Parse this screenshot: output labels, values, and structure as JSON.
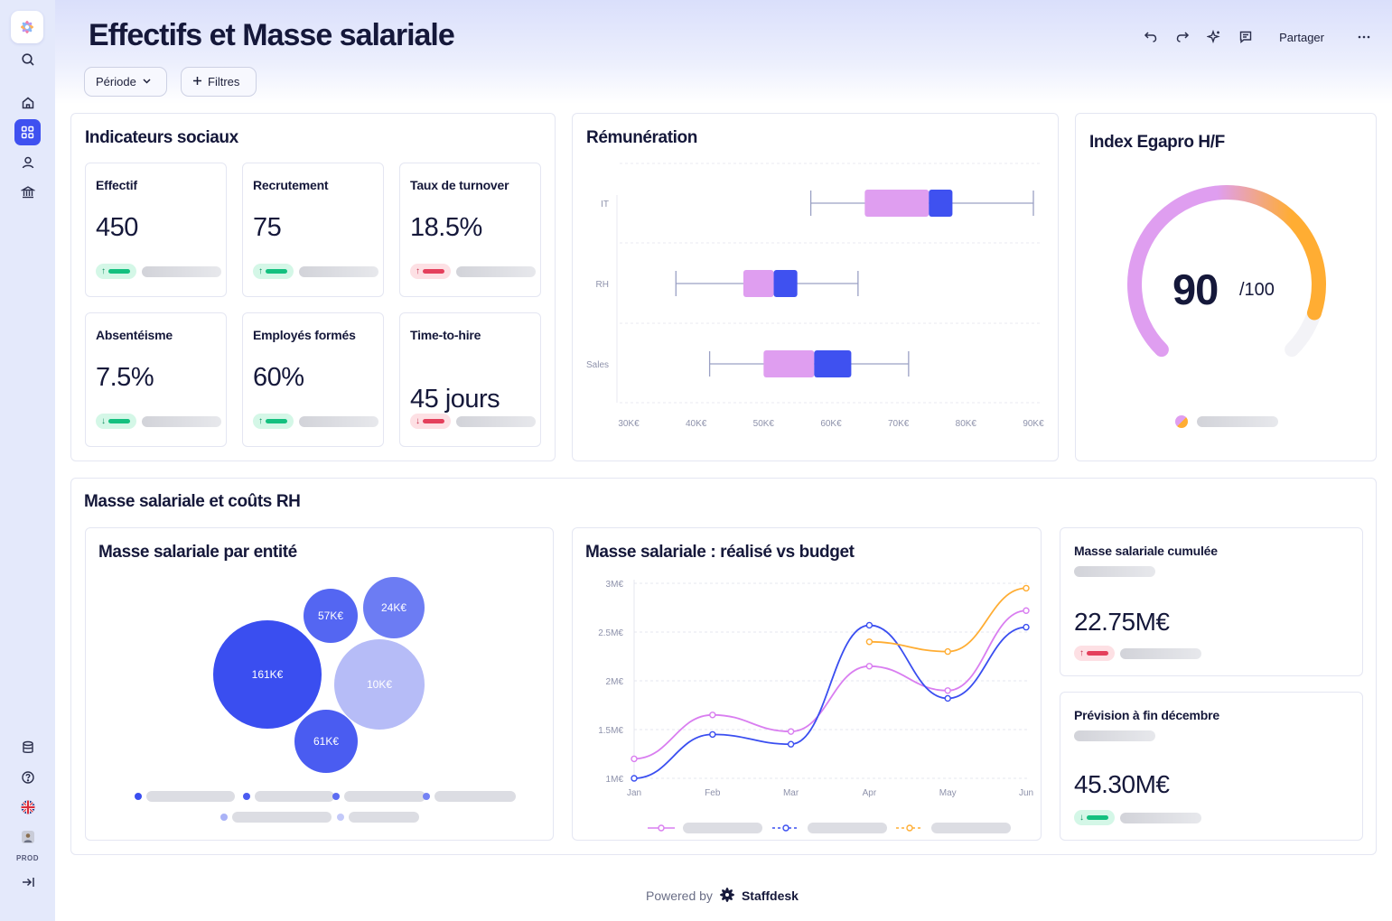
{
  "page": {
    "title": "Effectifs et Masse salariale",
    "filters": {
      "period_label": "Période",
      "filters_label": "Filtres"
    },
    "toolbar": {
      "share_label": "Partager"
    }
  },
  "sidebar": {
    "env_label": "PROD",
    "icons": [
      "logo-icon",
      "search-icon",
      "home-icon",
      "dashboard-icon",
      "user-icon",
      "bank-icon",
      "database-icon",
      "help-icon",
      "uk-flag-icon",
      "avatar",
      "collapse-icon"
    ]
  },
  "social": {
    "title": "Indicateurs sociaux",
    "kpis": [
      {
        "label": "Effectif",
        "value": "450",
        "trend": "up"
      },
      {
        "label": "Recrutement",
        "value": "75",
        "trend": "up"
      },
      {
        "label": "Taux de turnover",
        "value": "18.5%",
        "trend": "down"
      },
      {
        "label": "Absentéisme",
        "value": "7.5%",
        "trend": "up"
      },
      {
        "label": "Employés formés",
        "value": "60%",
        "trend": "up"
      },
      {
        "label": "Time-to-hire",
        "value": "45 jours",
        "trend": "down"
      }
    ]
  },
  "egapro": {
    "title": "Index Egapro H/F",
    "value": "90",
    "max": "/100"
  },
  "payroll": {
    "section_title": "Masse salariale et coûts RH",
    "bubble_title": "Masse salariale par entité",
    "line_title": "Masse salariale :  réalisé vs budget",
    "cumulative": {
      "title": "Masse salariale cumulée",
      "value": "22.75M€"
    },
    "forecast": {
      "title": "Prévision à fin décembre",
      "value": "45.30M€"
    }
  },
  "footer": {
    "powered_by": "Powered by",
    "brand": "Staffdesk"
  },
  "colors": {
    "primary": "#3f51f0",
    "lilac": "#df9ef0",
    "orange": "#ffad33",
    "up": "#14c07f",
    "down": "#e4405c"
  },
  "chart_data": [
    {
      "type": "boxplot",
      "title": "Rémunération",
      "categories": [
        "IT",
        "RH",
        "Sales"
      ],
      "x_ticks": [
        "30K€",
        "40K€",
        "50K€",
        "60K€",
        "70K€",
        "80K€",
        "90K€"
      ],
      "xlim": [
        30000,
        90000
      ],
      "boxes": [
        {
          "category": "IT",
          "min": 57000,
          "q1": 65000,
          "median": 74500,
          "q3": 78000,
          "max": 90000
        },
        {
          "category": "RH",
          "min": 37000,
          "q1": 47000,
          "median": 51500,
          "q3": 55000,
          "max": 64000
        },
        {
          "category": "Sales",
          "min": 42000,
          "q1": 50000,
          "median": 57500,
          "q3": 63000,
          "max": 71500
        }
      ]
    },
    {
      "type": "gauge",
      "title": "Index Egapro H/F",
      "value": 90,
      "max": 100
    },
    {
      "type": "bubble",
      "title": "Masse salariale par entité",
      "bubbles": [
        {
          "label": "161K€",
          "value": 161,
          "color": "#3a4ef0"
        },
        {
          "label": "57K€",
          "value": 57,
          "color": "#5466f2"
        },
        {
          "label": "24K€",
          "value": 24,
          "color": "#6c7cf3"
        },
        {
          "label": "10K€",
          "value": 10,
          "color": "#b6bcf7"
        },
        {
          "label": "61K€",
          "value": 61,
          "color": "#4a5cf1"
        }
      ],
      "legend_colors": [
        "#3a4ef0",
        "#4b5cf1",
        "#5c6cf2",
        "#7482f4",
        "#aab3f7",
        "#c3c9f9"
      ]
    },
    {
      "type": "line",
      "title": "Masse salariale :  réalisé vs budget",
      "categories": [
        "Jan",
        "Feb",
        "Mar",
        "Apr",
        "May",
        "Jun"
      ],
      "y_ticks": [
        "1M€",
        "1.5M€",
        "2M€",
        "2.5M€",
        "3M€"
      ],
      "ylim": [
        1000000,
        3000000
      ],
      "series": [
        {
          "color": "#d97ef0",
          "values": [
            1200000,
            1650000,
            1480000,
            2150000,
            1900000,
            2720000
          ]
        },
        {
          "color": "#3a4ef0",
          "values": [
            1000000,
            1450000,
            1350000,
            2570000,
            1820000,
            2550000
          ]
        },
        {
          "color": "#ffad33",
          "values": [
            null,
            null,
            null,
            2400000,
            2300000,
            2950000
          ]
        }
      ]
    }
  ]
}
